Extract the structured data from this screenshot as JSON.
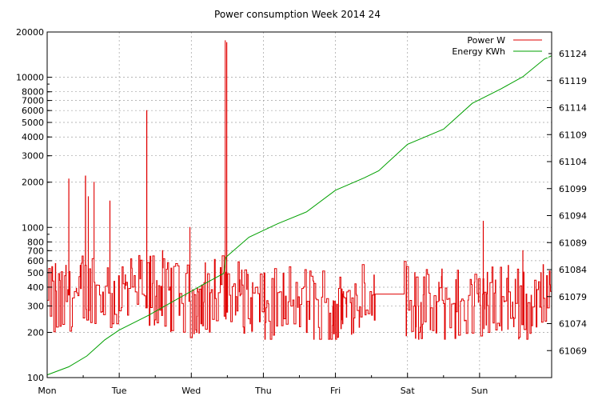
{
  "chart_data": {
    "type": "line",
    "title": "Power consumption Week 2014 24",
    "x_categories": [
      "Mon",
      "Tue",
      "Wed",
      "Thu",
      "Fri",
      "Sat",
      "Sun"
    ],
    "x_range_days": [
      0,
      7
    ],
    "legend_position": "top-right",
    "grid": true,
    "y_left": {
      "scale": "log",
      "range": [
        100,
        20000
      ],
      "ticks": [
        100,
        200,
        300,
        400,
        500,
        600,
        700,
        800,
        1000,
        2000,
        3000,
        4000,
        5000,
        6000,
        7000,
        8000,
        10000,
        20000
      ],
      "labels": [
        "100",
        "200",
        "300",
        "400",
        "500",
        "600",
        "700",
        "800",
        "1000",
        "2000",
        "3000",
        "4000",
        "5000",
        "6000",
        "7000",
        "8000",
        "10000",
        "20000"
      ]
    },
    "y_right": {
      "scale": "linear",
      "range": [
        61064,
        61128
      ],
      "ticks": [
        61069,
        61074,
        61079,
        61084,
        61089,
        61094,
        61099,
        61104,
        61109,
        61114,
        61119,
        61124
      ],
      "labels": [
        "61069",
        "61074",
        "61079",
        "61084",
        "61089",
        "61094",
        "61099",
        "61104",
        "61109",
        "61114",
        "61119",
        "61124"
      ]
    },
    "series": [
      {
        "name": "Power W",
        "axis": "left",
        "color": "#e00000",
        "style": "noisy-step",
        "baseline_profile": [
          [
            0.0,
            330
          ],
          [
            0.5,
            360
          ],
          [
            1.0,
            400
          ],
          [
            1.5,
            380
          ],
          [
            2.0,
            330
          ],
          [
            2.5,
            370
          ],
          [
            3.0,
            300
          ],
          [
            3.5,
            320
          ],
          [
            4.0,
            290
          ],
          [
            4.4,
            400
          ],
          [
            4.55,
            360
          ],
          [
            4.95,
            360
          ],
          [
            5.0,
            290
          ],
          [
            5.5,
            300
          ],
          [
            6.0,
            310
          ],
          [
            6.5,
            320
          ],
          [
            7.0,
            320
          ]
        ],
        "spikes": [
          [
            0.3,
            2100
          ],
          [
            0.53,
            2200
          ],
          [
            0.57,
            1600
          ],
          [
            0.65,
            2000
          ],
          [
            0.87,
            1500
          ],
          [
            1.38,
            6000
          ],
          [
            1.6,
            700
          ],
          [
            1.98,
            1000
          ],
          [
            2.47,
            17500
          ],
          [
            2.49,
            17000
          ],
          [
            5.1,
            500
          ],
          [
            6.05,
            1100
          ],
          [
            6.6,
            700
          ],
          [
            6.85,
            500
          ]
        ]
      },
      {
        "name": "Energy KWh",
        "axis": "right",
        "color": "#00a000",
        "points": [
          [
            0.0,
            61064.5
          ],
          [
            0.3,
            61066.0
          ],
          [
            0.55,
            61068.0
          ],
          [
            0.8,
            61071.0
          ],
          [
            1.0,
            61072.8
          ],
          [
            1.4,
            61075.5
          ],
          [
            1.8,
            61078.5
          ],
          [
            2.2,
            61081.5
          ],
          [
            2.45,
            61083.3
          ],
          [
            2.48,
            61086.3
          ],
          [
            2.8,
            61090.0
          ],
          [
            3.2,
            61092.5
          ],
          [
            3.6,
            61094.7
          ],
          [
            4.0,
            61098.7
          ],
          [
            4.4,
            61101.0
          ],
          [
            4.6,
            61102.3
          ],
          [
            5.0,
            61107.2
          ],
          [
            5.5,
            61110.0
          ],
          [
            5.9,
            61114.8
          ],
          [
            6.3,
            61117.5
          ],
          [
            6.6,
            61119.7
          ],
          [
            6.9,
            61123.0
          ],
          [
            7.0,
            61123.6
          ]
        ]
      }
    ]
  }
}
